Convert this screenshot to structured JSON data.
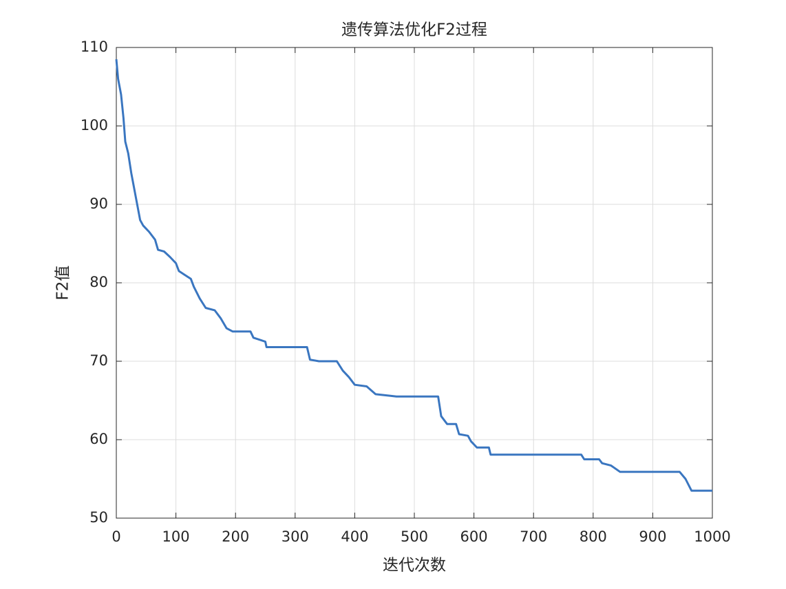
{
  "chart_data": {
    "type": "line",
    "title": "遗传算法优化F2过程",
    "x_label": "迭代次数",
    "y_label": "F2值",
    "x": [
      0,
      3,
      8,
      12,
      15,
      20,
      25,
      30,
      35,
      40,
      45,
      55,
      65,
      70,
      80,
      90,
      100,
      105,
      115,
      125,
      130,
      140,
      150,
      165,
      175,
      185,
      195,
      225,
      230,
      250,
      252,
      320,
      325,
      340,
      370,
      380,
      390,
      400,
      420,
      435,
      460,
      470,
      540,
      545,
      555,
      570,
      575,
      590,
      595,
      605,
      625,
      628,
      780,
      785,
      810,
      815,
      830,
      845,
      945,
      955,
      965,
      1000
    ],
    "values": [
      108.5,
      106,
      104,
      101,
      98,
      96.5,
      94,
      92,
      90,
      88,
      87.3,
      86.5,
      85.5,
      84.2,
      84,
      83.3,
      82.5,
      81.5,
      81,
      80.5,
      79.5,
      78,
      76.8,
      76.5,
      75.5,
      74.2,
      73.8,
      73.8,
      73,
      72.5,
      71.8,
      71.8,
      70.2,
      70,
      70,
      68.8,
      68,
      67,
      66.8,
      65.8,
      65.6,
      65.5,
      65.5,
      63,
      62,
      62,
      60.7,
      60.5,
      59.8,
      59,
      59,
      58.1,
      58.1,
      57.5,
      57.5,
      57,
      56.7,
      55.9,
      55.9,
      55,
      53.5,
      53.5
    ],
    "color": "#3a76c0",
    "xlim": [
      0,
      1000
    ],
    "xticks": [
      0,
      100,
      200,
      300,
      400,
      500,
      600,
      700,
      800,
      900,
      1000
    ],
    "ylim": [
      50,
      110
    ],
    "yticks": [
      50,
      60,
      70,
      80,
      90,
      100,
      110
    ],
    "grid": true
  }
}
